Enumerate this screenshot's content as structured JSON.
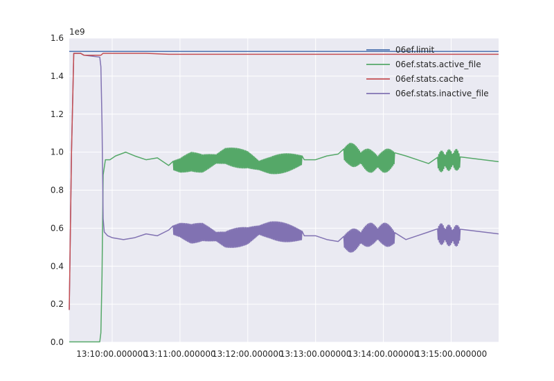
{
  "chart_data": {
    "type": "line",
    "y_offset_label": "1e9",
    "ylim": [
      0.0,
      1.6
    ],
    "yticks": [
      0.0,
      0.2,
      0.4,
      0.6,
      0.8,
      1.0,
      1.2,
      1.4,
      1.6
    ],
    "ytick_labels": [
      "0.0",
      "0.2",
      "0.4",
      "0.6",
      "0.8",
      "1.0",
      "1.2",
      "1.4",
      "1.6"
    ],
    "xlim": [
      "13:09:22",
      "13:15:42"
    ],
    "xticks": [
      "13:10:00",
      "13:11:00",
      "13:12:00",
      "13:13:00",
      "13:14:00",
      "13:15:00"
    ],
    "xtick_labels": [
      "13:10:00.000000",
      "13:11:00.000000",
      "13:12:00.000000",
      "13:13:00.000000",
      "13:14:00.000000",
      "13:15:00.000000"
    ],
    "grid": true,
    "legend_position": "top-right",
    "series": [
      {
        "name": "06ef.limit",
        "color": "#4c72b0",
        "points": [
          [
            "13:09:22",
            1.53
          ],
          [
            "13:15:42",
            1.53
          ]
        ]
      },
      {
        "name": "06ef.stats.active_file",
        "color": "#55a868",
        "points": [
          [
            "13:09:22",
            0.002
          ],
          [
            "13:09:49",
            0.002
          ],
          [
            "13:09:50",
            0.05
          ],
          [
            "13:09:51",
            0.35
          ],
          [
            "13:09:52",
            0.88
          ],
          [
            "13:09:54",
            0.96
          ],
          [
            "13:09:58",
            0.96
          ],
          [
            "13:10:03",
            0.98
          ],
          [
            "13:10:12",
            1.0
          ],
          [
            "13:10:20",
            0.98
          ],
          [
            "13:10:30",
            0.96
          ],
          [
            "13:10:40",
            0.97
          ],
          [
            "13:10:50",
            0.93
          ],
          [
            "13:11:00",
            0.93
          ],
          [
            "13:11:10",
            0.95
          ],
          [
            "13:11:20",
            0.94
          ],
          [
            "13:11:30",
            0.96
          ],
          [
            "13:11:40",
            0.98
          ],
          [
            "13:11:50",
            0.97
          ],
          [
            "13:12:00",
            0.96
          ],
          [
            "13:12:10",
            0.93
          ],
          [
            "13:12:20",
            0.93
          ],
          [
            "13:12:30",
            0.94
          ],
          [
            "13:12:40",
            0.95
          ],
          [
            "13:12:50",
            0.96
          ],
          [
            "13:13:00",
            0.96
          ],
          [
            "13:13:10",
            0.98
          ],
          [
            "13:13:20",
            0.99
          ],
          [
            "13:13:30",
            0.99
          ],
          [
            "13:13:40",
            0.97
          ],
          [
            "13:13:50",
            0.95
          ],
          [
            "13:14:00",
            0.95
          ],
          [
            "13:14:10",
            0.97
          ],
          [
            "13:14:20",
            0.98
          ],
          [
            "13:14:30",
            0.96
          ],
          [
            "13:14:40",
            0.94
          ],
          [
            "13:14:50",
            0.95
          ],
          [
            "13:15:00",
            0.96
          ],
          [
            "13:15:05",
            0.96
          ],
          [
            "13:15:08",
            0.95
          ],
          [
            "13:15:42",
            0.95
          ]
        ]
      },
      {
        "name": "06ef.stats.cache",
        "color": "#c44e52",
        "points": [
          [
            "13:09:22",
            0.17
          ],
          [
            "13:09:24",
            1.0
          ],
          [
            "13:09:26",
            1.52
          ],
          [
            "13:09:32",
            1.52
          ],
          [
            "13:09:35",
            1.51
          ],
          [
            "13:09:50",
            1.51
          ],
          [
            "13:09:52",
            1.52
          ],
          [
            "13:10:30",
            1.52
          ],
          [
            "13:10:50",
            1.515
          ],
          [
            "13:15:42",
            1.515
          ]
        ]
      },
      {
        "name": "06ef.stats.inactive_file",
        "color": "#8172b2",
        "points": [
          [
            "13:09:22",
            0.17
          ],
          [
            "13:09:24",
            1.0
          ],
          [
            "13:09:26",
            1.52
          ],
          [
            "13:09:32",
            1.52
          ],
          [
            "13:09:35",
            1.51
          ],
          [
            "13:09:49",
            1.5
          ],
          [
            "13:09:50",
            1.45
          ],
          [
            "13:09:51",
            1.15
          ],
          [
            "13:09:52",
            0.65
          ],
          [
            "13:09:53",
            0.58
          ],
          [
            "13:09:56",
            0.56
          ],
          [
            "13:10:00",
            0.55
          ],
          [
            "13:10:10",
            0.54
          ],
          [
            "13:10:20",
            0.55
          ],
          [
            "13:10:30",
            0.57
          ],
          [
            "13:10:40",
            0.56
          ],
          [
            "13:10:50",
            0.59
          ],
          [
            "13:11:00",
            0.59
          ],
          [
            "13:11:10",
            0.57
          ],
          [
            "13:11:20",
            0.58
          ],
          [
            "13:11:30",
            0.56
          ],
          [
            "13:11:40",
            0.54
          ],
          [
            "13:11:50",
            0.55
          ],
          [
            "13:12:00",
            0.56
          ],
          [
            "13:12:10",
            0.59
          ],
          [
            "13:12:20",
            0.59
          ],
          [
            "13:12:30",
            0.58
          ],
          [
            "13:12:40",
            0.57
          ],
          [
            "13:12:50",
            0.56
          ],
          [
            "13:13:00",
            0.56
          ],
          [
            "13:13:10",
            0.54
          ],
          [
            "13:13:20",
            0.53
          ],
          [
            "13:13:30",
            0.53
          ],
          [
            "13:13:40",
            0.55
          ],
          [
            "13:13:50",
            0.57
          ],
          [
            "13:14:00",
            0.57
          ],
          [
            "13:14:10",
            0.55
          ],
          [
            "13:14:20",
            0.54
          ],
          [
            "13:14:30",
            0.56
          ],
          [
            "13:14:40",
            0.58
          ],
          [
            "13:14:50",
            0.57
          ],
          [
            "13:15:00",
            0.56
          ],
          [
            "13:15:05",
            0.56
          ],
          [
            "13:15:08",
            0.57
          ],
          [
            "13:15:42",
            0.57
          ]
        ]
      }
    ],
    "oscillations": [
      {
        "series": "06ef.stats.active_file",
        "start": "13:10:54",
        "end": "13:12:48",
        "amplitude": 0.05
      },
      {
        "series": "06ef.stats.active_file",
        "start": "13:13:25",
        "end": "13:14:10",
        "amplitude": 0.06
      },
      {
        "series": "06ef.stats.active_file",
        "start": "13:14:48",
        "end": "13:15:08",
        "amplitude": 0.055
      },
      {
        "series": "06ef.stats.inactive_file",
        "start": "13:10:54",
        "end": "13:12:48",
        "amplitude": 0.05
      },
      {
        "series": "06ef.stats.inactive_file",
        "start": "13:13:25",
        "end": "13:14:10",
        "amplitude": 0.06
      },
      {
        "series": "06ef.stats.inactive_file",
        "start": "13:14:48",
        "end": "13:15:08",
        "amplitude": 0.055
      }
    ]
  }
}
